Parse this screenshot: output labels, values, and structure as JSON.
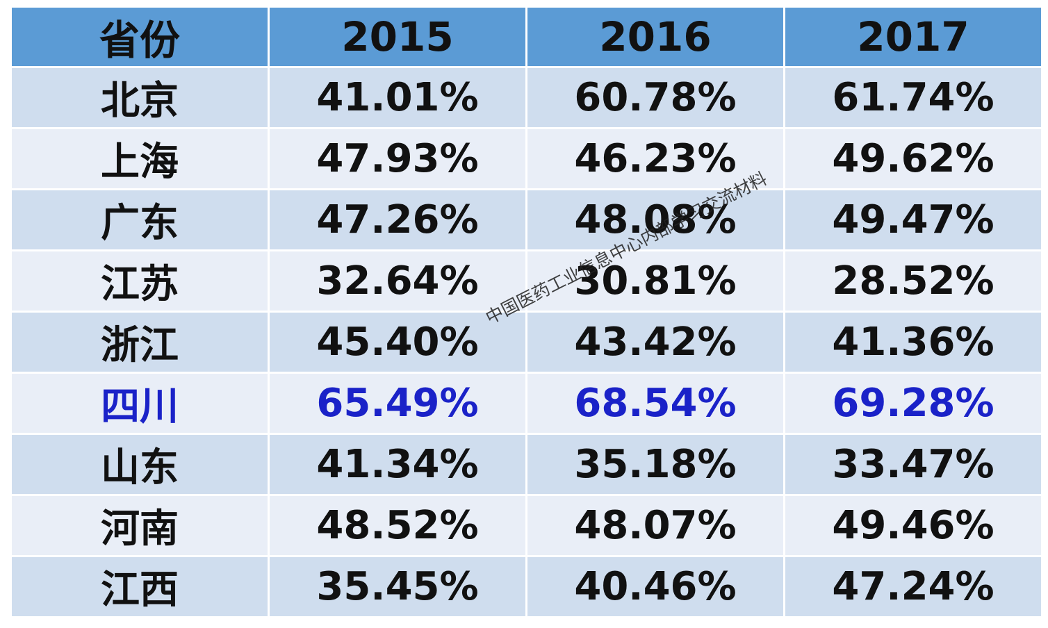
{
  "chart_data": {
    "type": "table",
    "columns": [
      "省份",
      "2015",
      "2016",
      "2017"
    ],
    "rows": [
      {
        "province": "北京",
        "values": [
          "41.01%",
          "60.78%",
          "61.74%"
        ]
      },
      {
        "province": "上海",
        "values": [
          "47.93%",
          "46.23%",
          "49.62%"
        ]
      },
      {
        "province": "广东",
        "values": [
          "47.26%",
          "48.08%",
          "49.47%"
        ]
      },
      {
        "province": "江苏",
        "values": [
          "32.64%",
          "30.81%",
          "28.52%"
        ]
      },
      {
        "province": "浙江",
        "values": [
          "45.40%",
          "43.42%",
          "41.36%"
        ]
      },
      {
        "province": "四川",
        "values": [
          "65.49%",
          "68.54%",
          "69.28%"
        ],
        "highlight": true
      },
      {
        "province": "山东",
        "values": [
          "41.34%",
          "35.18%",
          "33.47%"
        ]
      },
      {
        "province": "河南",
        "values": [
          "48.52%",
          "48.07%",
          "49.46%"
        ]
      },
      {
        "province": "江西",
        "values": [
          "35.45%",
          "40.46%",
          "47.24%"
        ]
      }
    ],
    "header_color": "#5b9bd5",
    "row_colors": [
      "#cfddee",
      "#e9eef7"
    ],
    "highlight_color": "#1a22c8"
  },
  "watermark": "中国医药工业信息中心内部学习交流材料"
}
